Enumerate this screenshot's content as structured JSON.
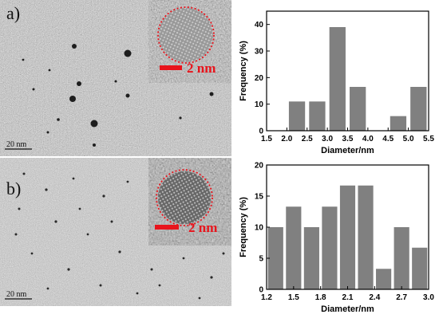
{
  "panels": [
    {
      "letter": "a)",
      "inset_scale": "2 nm",
      "main_scale": "20 nm"
    },
    {
      "letter": "b)",
      "inset_scale": "2 nm",
      "main_scale": "20 nm"
    }
  ],
  "colors": {
    "bar": "#808080",
    "scale": "#e8141c",
    "axis": "#000000"
  },
  "chart_data": [
    {
      "type": "bar",
      "title": "",
      "xlabel": "Diameter/nm",
      "ylabel": "Frequency (%)",
      "x": [
        2.25,
        2.75,
        3.25,
        3.75,
        4.75,
        5.25
      ],
      "values": [
        11,
        11,
        39,
        16.5,
        5.5,
        16.5
      ],
      "bar_width": 0.4,
      "xlim": [
        1.5,
        5.5
      ],
      "ylim": [
        0,
        45
      ],
      "xticks": [
        "1.5",
        "2.0",
        "2.5",
        "3.0",
        "3.5",
        "4.0",
        "4.5",
        "5.0",
        "5.5"
      ],
      "yticks": [
        "0",
        "10",
        "20",
        "30",
        "40"
      ],
      "grid": false
    },
    {
      "type": "bar",
      "title": "",
      "xlabel": "Diameter/nm",
      "ylabel": "Frequency (%)",
      "x": [
        1.3,
        1.5,
        1.7,
        1.9,
        2.1,
        2.3,
        2.5,
        2.7,
        2.9
      ],
      "values": [
        10,
        13.3,
        10,
        13.3,
        16.7,
        16.7,
        3.3,
        10,
        6.7
      ],
      "bar_width": 0.17,
      "xlim": [
        1.2,
        3.0
      ],
      "ylim": [
        0,
        20
      ],
      "xticks": [
        "1.2",
        "1.5",
        "1.8",
        "2.1",
        "2.4",
        "2.7",
        "3.0"
      ],
      "yticks": [
        "0",
        "5",
        "10",
        "15",
        "20"
      ],
      "grid": false
    }
  ]
}
